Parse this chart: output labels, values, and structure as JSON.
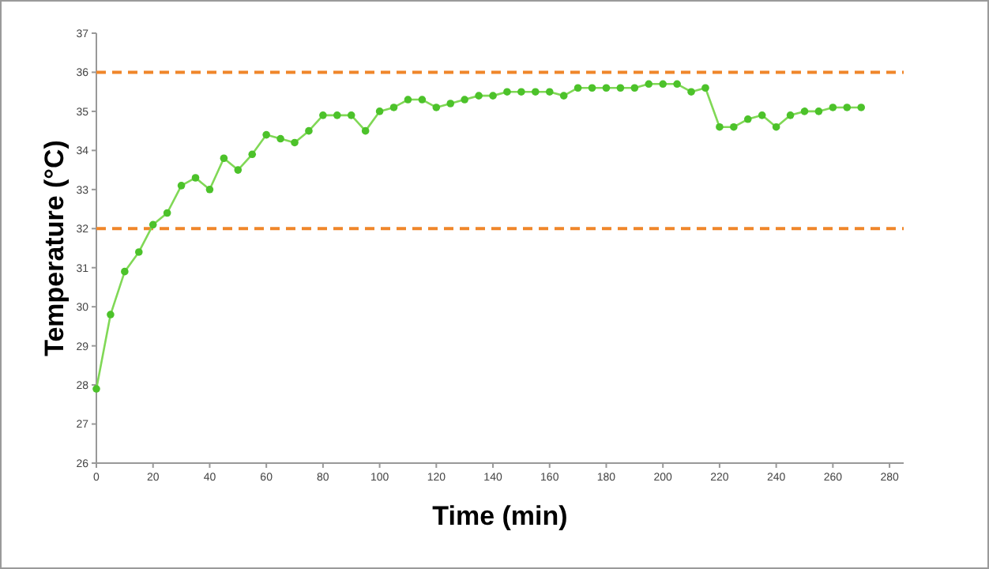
{
  "chart_data": {
    "type": "line",
    "xlabel": "Time (min)",
    "ylabel": "Temperature (°C)",
    "x": [
      0,
      5,
      10,
      15,
      20,
      25,
      30,
      35,
      40,
      45,
      50,
      55,
      60,
      65,
      70,
      75,
      80,
      85,
      90,
      95,
      100,
      105,
      110,
      115,
      120,
      125,
      130,
      135,
      140,
      145,
      150,
      155,
      160,
      165,
      170,
      175,
      180,
      185,
      190,
      195,
      200,
      205,
      210,
      215,
      220,
      225,
      230,
      235,
      240,
      245,
      250,
      255,
      260,
      265,
      270
    ],
    "series": [
      {
        "color": "#80d856",
        "values": [
          27.9,
          29.8,
          30.9,
          31.4,
          32.1,
          32.4,
          33.1,
          33.3,
          33.0,
          33.8,
          33.5,
          33.9,
          34.4,
          34.3,
          34.2,
          34.5,
          34.9,
          34.9,
          34.9,
          34.5,
          35.0,
          35.1,
          35.3,
          35.3,
          35.1,
          35.2,
          35.3,
          35.4,
          35.4,
          35.5,
          35.5,
          35.5,
          35.5,
          35.4,
          35.6,
          35.6,
          35.6,
          35.6,
          35.6,
          35.7,
          35.7,
          35.7,
          35.5,
          35.6,
          34.6,
          34.6,
          34.8,
          34.9,
          34.6,
          34.9,
          35.0,
          35.0,
          35.1,
          35.1,
          35.1
        ]
      }
    ],
    "xlim": [
      0,
      285
    ],
    "xticks": [
      0,
      20,
      40,
      60,
      80,
      100,
      120,
      140,
      160,
      180,
      200,
      220,
      240,
      260,
      280
    ],
    "ylim": [
      26,
      37
    ],
    "yticks": [
      26,
      27,
      28,
      29,
      30,
      31,
      32,
      33,
      34,
      35,
      36,
      37
    ],
    "ref_lines": [
      {
        "axis": "y",
        "value": 36,
        "color": "#f0862a",
        "line_style": "dashed"
      },
      {
        "axis": "y",
        "value": 32,
        "color": "#f0862a",
        "line_style": "dashed"
      }
    ],
    "marker": "circle",
    "line_style": "solid"
  }
}
